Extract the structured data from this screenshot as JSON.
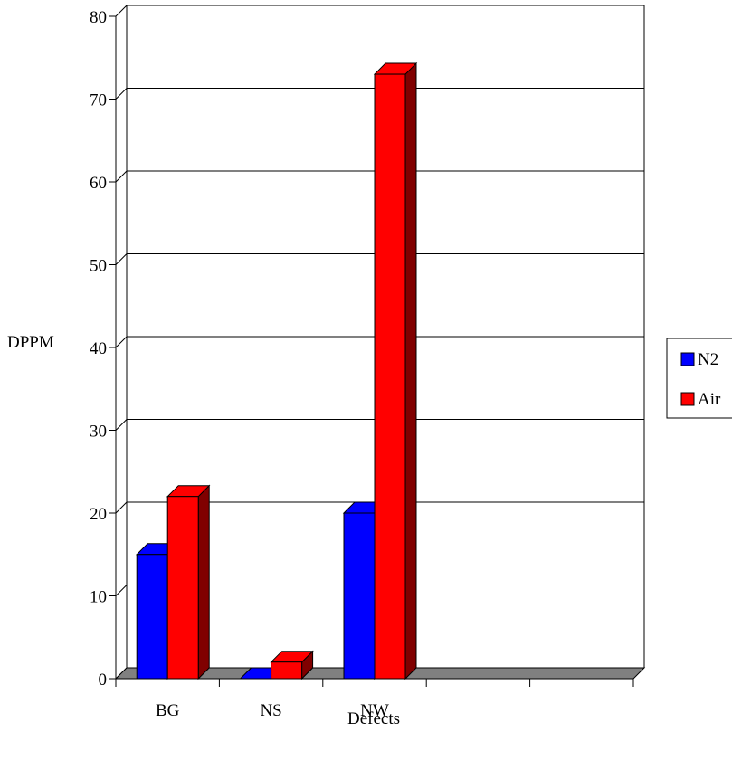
{
  "chart_data": {
    "type": "bar",
    "title": "",
    "xlabel": "Defects",
    "ylabel": "DPPM",
    "categories": [
      "BG",
      "NS",
      "NW",
      "",
      ""
    ],
    "series": [
      {
        "name": "N2",
        "values": [
          15,
          0,
          20,
          null,
          null
        ]
      },
      {
        "name": "Air",
        "values": [
          22,
          2,
          73,
          null,
          null
        ]
      }
    ],
    "ylim": [
      0,
      80
    ],
    "yticks": [
      0,
      10,
      20,
      30,
      40,
      50,
      60,
      70,
      80
    ],
    "grid": true,
    "legend_position": "right",
    "bar_style": "3d",
    "colors": {
      "N2": "#0000ff",
      "N2_side": "#000080",
      "Air": "#ff0000",
      "Air_side": "#800000",
      "floor": "#808080",
      "grid": "#000000"
    }
  }
}
